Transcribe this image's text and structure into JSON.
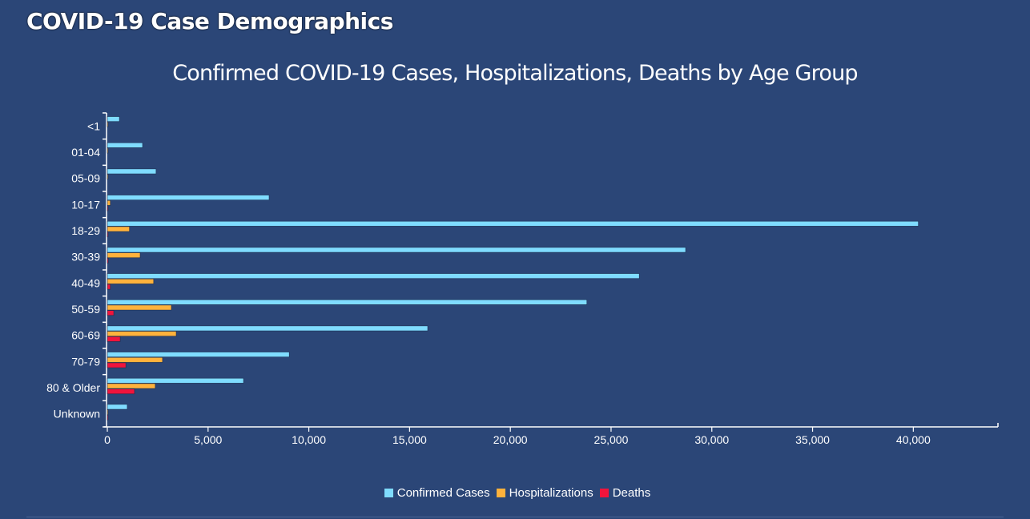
{
  "header": {
    "title": "COVID-19 Case Demographics"
  },
  "colors": {
    "background": "#2b4677",
    "confirmed": "#7fdcff",
    "hospitalizations": "#ffb23c",
    "deaths": "#f0143c"
  },
  "chart_data": {
    "type": "bar",
    "orientation": "horizontal",
    "title": "Confirmed COVID-19 Cases, Hospitalizations, Deaths by Age Group",
    "xlabel": "",
    "ylabel": "",
    "categories": [
      "<1",
      "01-04",
      "05-09",
      "10-17",
      "18-29",
      "30-39",
      "40-49",
      "50-59",
      "60-69",
      "70-79",
      "80 & Older",
      "Unknown"
    ],
    "series": [
      {
        "name": "Confirmed Cases",
        "color": "#7fdcff",
        "values": [
          600,
          1750,
          2420,
          8030,
          40250,
          28700,
          26400,
          23800,
          15900,
          9030,
          6760,
          990
        ]
      },
      {
        "name": "Hospitalizations",
        "color": "#ffb23c",
        "values": [
          10,
          20,
          20,
          150,
          1100,
          1630,
          2300,
          3180,
          3420,
          2740,
          2380,
          30
        ]
      },
      {
        "name": "Deaths",
        "color": "#f0143c",
        "values": [
          0,
          0,
          0,
          5,
          15,
          50,
          150,
          320,
          640,
          920,
          1350,
          5
        ]
      }
    ],
    "xlim": [
      0,
      44200
    ],
    "xticks": [
      0,
      5000,
      10000,
      15000,
      20000,
      25000,
      30000,
      35000,
      40000
    ],
    "xtick_labels": [
      "0",
      "5,000",
      "10,000",
      "15,000",
      "20,000",
      "25,000",
      "30,000",
      "35,000",
      "40,000"
    ],
    "grid": false,
    "legend_position": "bottom"
  }
}
